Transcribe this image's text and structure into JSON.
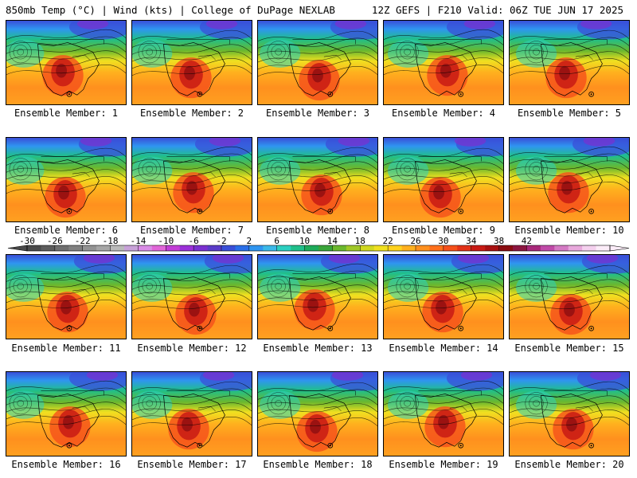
{
  "header": {
    "left": "850mb Temp (°C) | Wind (kts) | College of DuPage NEXLAB",
    "right": "12Z GEFS | F210 Valid: 06Z TUE JUN 17 2025"
  },
  "members": [
    "Ensemble Member: 1",
    "Ensemble Member: 2",
    "Ensemble Member: 3",
    "Ensemble Member: 4",
    "Ensemble Member: 5",
    "Ensemble Member: 6",
    "Ensemble Member: 7",
    "Ensemble Member: 8",
    "Ensemble Member: 9",
    "Ensemble Member: 10",
    "Ensemble Member: 11",
    "Ensemble Member: 12",
    "Ensemble Member: 13",
    "Ensemble Member: 14",
    "Ensemble Member: 15",
    "Ensemble Member: 16",
    "Ensemble Member: 17",
    "Ensemble Member: 18",
    "Ensemble Member: 19",
    "Ensemble Member: 20"
  ],
  "colorbar": {
    "ticks": [
      "-30",
      "-26",
      "-22",
      "-18",
      "-14",
      "-10",
      "-6",
      "-2",
      "2",
      "6",
      "10",
      "14",
      "18",
      "22",
      "26",
      "30",
      "34",
      "38",
      "42"
    ],
    "colors": [
      "#4a4a4a",
      "#5c5c5c",
      "#6e6e6e",
      "#808080",
      "#939393",
      "#a6a6a6",
      "#bababa",
      "#c8a2d8",
      "#d98ce6",
      "#e066d8",
      "#c23dd6",
      "#9b30d8",
      "#7a30d0",
      "#5a3cc8",
      "#3a4fd8",
      "#2a6fe8",
      "#2f95f0",
      "#3bb8e8",
      "#2ccfc0",
      "#20bf8a",
      "#1eab5a",
      "#3aa53a",
      "#6bb82e",
      "#a0c828",
      "#d0d820",
      "#f0e020",
      "#ffd21e",
      "#ffb01e",
      "#ff901e",
      "#ff701c",
      "#f5501a",
      "#e23218",
      "#c81a14",
      "#a81010",
      "#8a0c10",
      "#8c1640",
      "#a8287a",
      "#c04aa8",
      "#d47ac4",
      "#e8a8dc",
      "#f4d0ee",
      "#fbecf8"
    ]
  },
  "icons": {
    "colorbar_left": "left-arrow-icon",
    "colorbar_right": "right-arrow-icon"
  }
}
